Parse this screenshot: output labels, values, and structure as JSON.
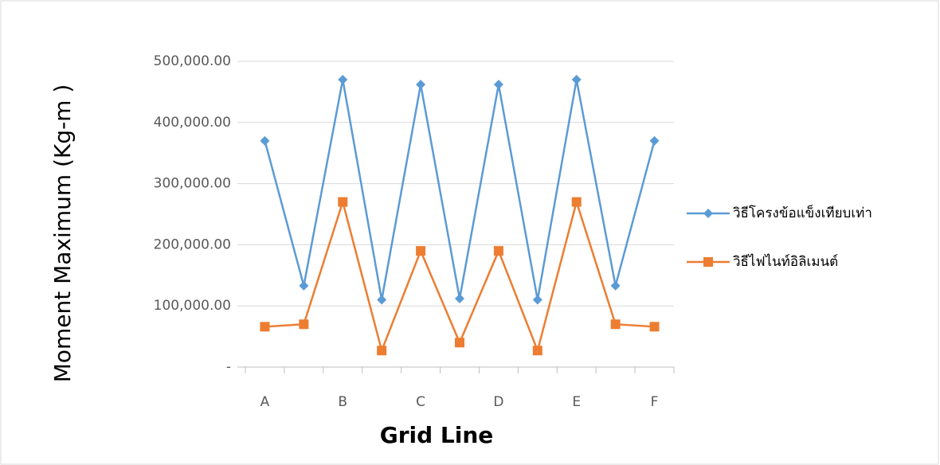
{
  "chart_data": {
    "type": "line",
    "x_label": "Grid Line",
    "y_label": "Moment  Maximum (Kg-m )",
    "categories": [
      "A",
      null,
      "B",
      null,
      "C",
      null,
      "D",
      null,
      "E",
      null,
      "F"
    ],
    "series": [
      {
        "name": "วิธีโครงข้อแข็งเทียบเท่า",
        "color": "#5b9bd5",
        "marker": "diamond",
        "values": [
          370000,
          133000,
          470000,
          110000,
          462000,
          112000,
          462000,
          110000,
          470000,
          133000,
          370000
        ]
      },
      {
        "name": "วิธีไฟไนท์อิลิเมนต์",
        "color": "#ed7d31",
        "marker": "square",
        "values": [
          66000,
          70000,
          270000,
          27000,
          190000,
          40000,
          190000,
          27000,
          270000,
          70000,
          66000
        ]
      }
    ],
    "ylim": [
      0,
      500000
    ],
    "yticks": [
      {
        "value": 0,
        "label": "-"
      },
      {
        "value": 100000,
        "label": "100,000.00"
      },
      {
        "value": 200000,
        "label": "200,000.00"
      },
      {
        "value": 300000,
        "label": "300,000.00"
      },
      {
        "value": 400000,
        "label": "400,000.00"
      },
      {
        "value": 500000,
        "label": "500,000.00"
      }
    ],
    "grid": true,
    "legend": "right"
  }
}
